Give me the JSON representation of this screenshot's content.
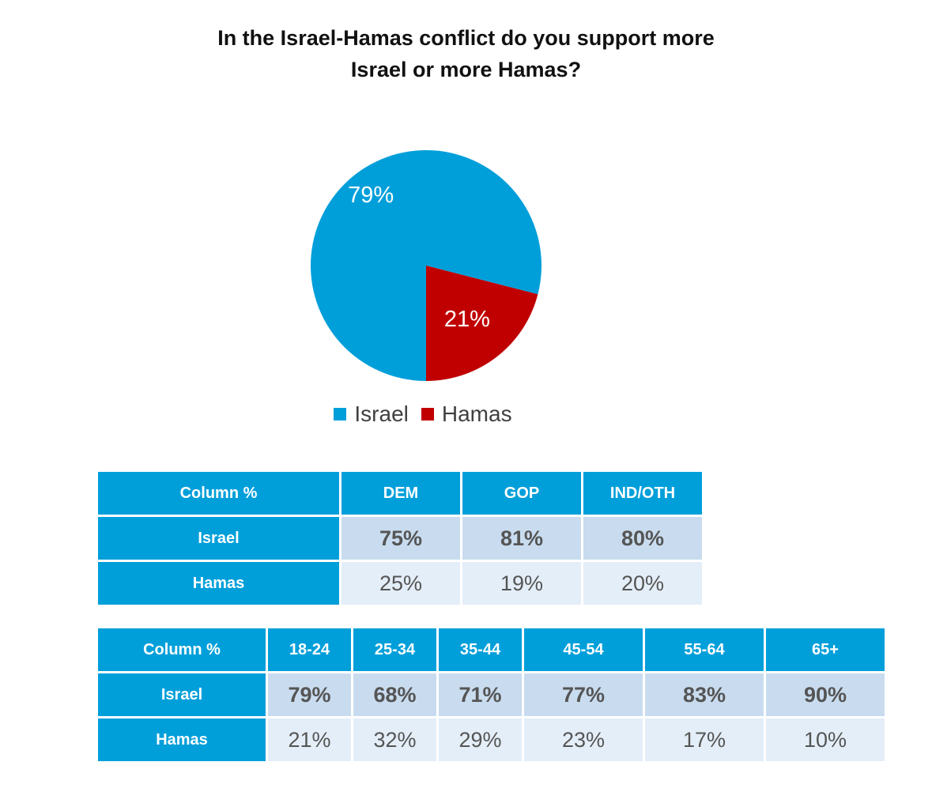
{
  "title": {
    "line1": "In the Israel-Hamas conflict do you support more",
    "line2": "Israel or more Hamas?"
  },
  "colors": {
    "israel": "#009fda",
    "hamas": "#c00000",
    "header": "#009fda",
    "israel_row": "#c9dcef",
    "hamas_row": "#e4eef8"
  },
  "chart_data": [
    {
      "type": "pie",
      "title": "In the Israel-Hamas conflict do you support more Israel or more Hamas?",
      "categories": [
        "Israel",
        "Hamas"
      ],
      "values": [
        79,
        21
      ],
      "labels": [
        "79%",
        "21%"
      ],
      "colors": [
        "#009fda",
        "#c00000"
      ],
      "legend": "bottom"
    },
    {
      "type": "table",
      "corner": "Column %",
      "columns": [
        "DEM",
        "GOP",
        "IND/OTH"
      ],
      "rows": [
        {
          "label": "Israel",
          "values": [
            "75%",
            "81%",
            "80%"
          ]
        },
        {
          "label": "Hamas",
          "values": [
            "25%",
            "19%",
            "20%"
          ]
        }
      ]
    },
    {
      "type": "table",
      "corner": "Column %",
      "columns": [
        "18-24",
        "25-34",
        "35-44",
        "45-54",
        "55-64",
        "65+"
      ],
      "rows": [
        {
          "label": "Israel",
          "values": [
            "79%",
            "68%",
            "71%",
            "77%",
            "83%",
            "90%"
          ]
        },
        {
          "label": "Hamas",
          "values": [
            "21%",
            "32%",
            "29%",
            "23%",
            "17%",
            "10%"
          ]
        }
      ]
    }
  ]
}
